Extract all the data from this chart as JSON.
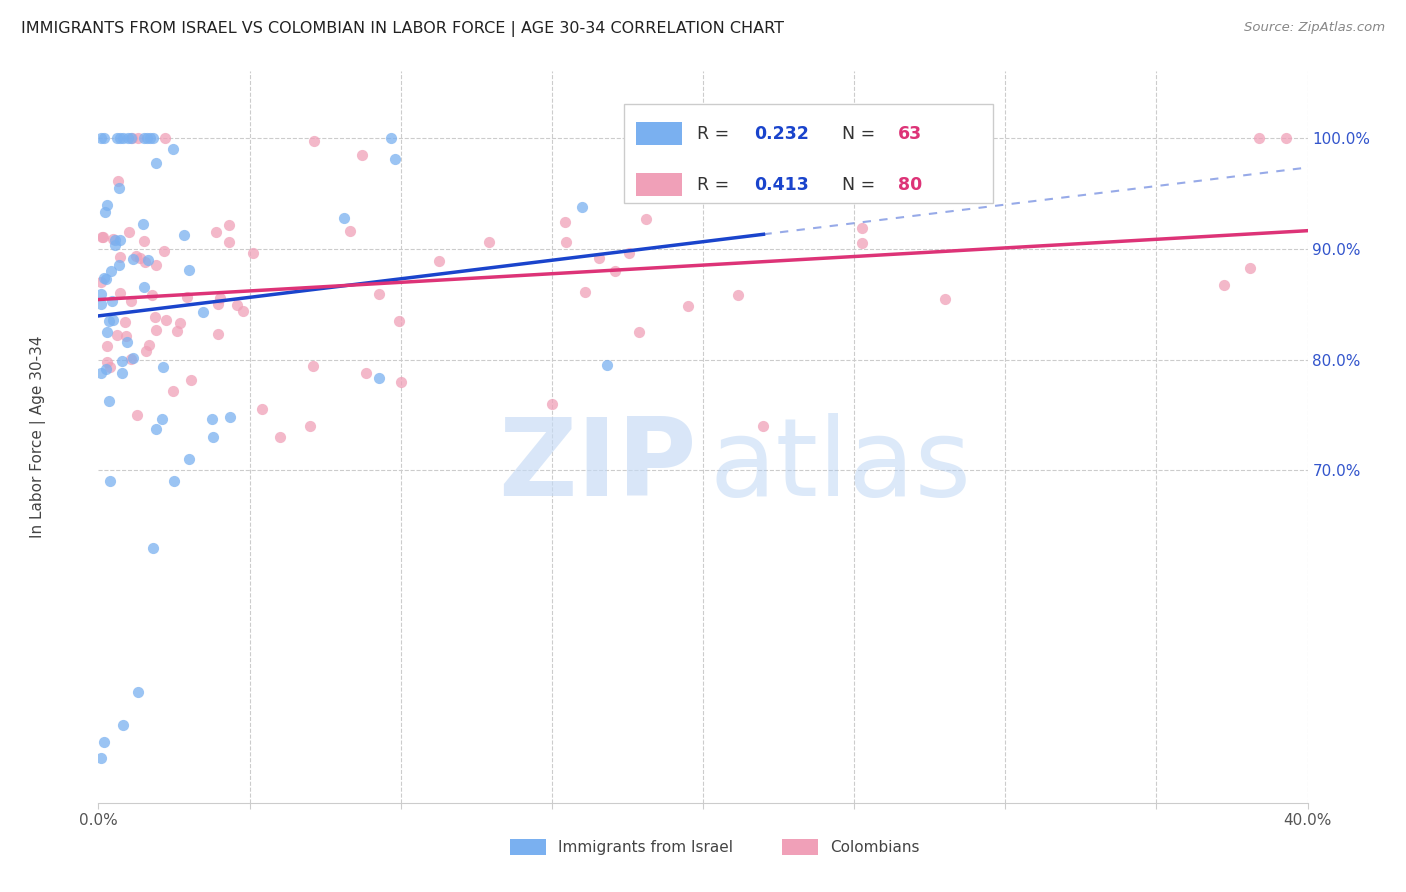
{
  "title": "IMMIGRANTS FROM ISRAEL VS COLOMBIAN IN LABOR FORCE | AGE 30-34 CORRELATION CHART",
  "source": "Source: ZipAtlas.com",
  "ylabel": "In Labor Force | Age 30-34",
  "xlim": [
    0.0,
    0.4
  ],
  "ylim": [
    0.4,
    1.06
  ],
  "xticks": [
    0.0,
    0.05,
    0.1,
    0.15,
    0.2,
    0.25,
    0.3,
    0.35,
    0.4
  ],
  "yticks_right": [
    1.0,
    0.9,
    0.8,
    0.7
  ],
  "right_tick_labels": [
    "100.0%",
    "90.0%",
    "80.0%",
    "70.0%"
  ],
  "R_israel": 0.232,
  "N_israel": 63,
  "R_colombia": 0.413,
  "N_colombia": 80,
  "color_israel": "#7ab0f0",
  "color_colombia": "#f0a0b8",
  "trend_israel_color": "#1a44cc",
  "trend_colombia_color": "#dd3377",
  "legend_r_color": "#1a44cc",
  "legend_n_color": "#dd3377",
  "right_tick_color": "#3355cc",
  "grid_color": "#cccccc",
  "bg_color": "#ffffff"
}
